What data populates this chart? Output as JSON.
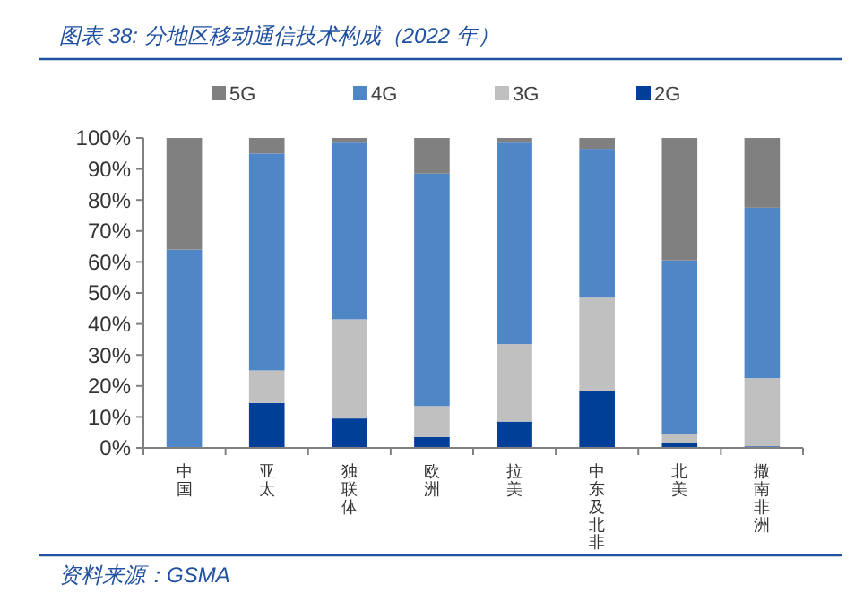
{
  "chart_data": {
    "type": "bar",
    "stacked": true,
    "title": "图表 38:  分地区移动通信技术构成（2022 年）",
    "annotations": [
      "资料来源：GSMA"
    ],
    "categories": [
      "中国",
      "亚太",
      "独联体",
      "欧洲",
      "拉美",
      "中东及北非",
      "北美",
      "撒南非洲"
    ],
    "series": [
      {
        "name": "2G",
        "color": "#003f98",
        "values": [
          0,
          14.5,
          9.5,
          3.5,
          8.5,
          18.5,
          1.5,
          0.5
        ]
      },
      {
        "name": "3G",
        "color": "#c0c0c0",
        "values": [
          0,
          10.5,
          32,
          10,
          25,
          30,
          3,
          22
        ]
      },
      {
        "name": "4G",
        "color": "#4f86c6",
        "values": [
          64,
          70,
          57,
          75,
          65,
          48,
          56,
          55
        ]
      },
      {
        "name": "5G",
        "color": "#808080",
        "values": [
          36,
          5,
          1.5,
          11.5,
          1.5,
          3.5,
          39.5,
          22.5
        ]
      }
    ],
    "ylim": [
      0,
      100
    ],
    "yticks": [
      {
        "value": 0,
        "label": "0%"
      },
      {
        "value": 10,
        "label": "10%"
      },
      {
        "value": 20,
        "label": "20%"
      },
      {
        "value": 30,
        "label": "30%"
      },
      {
        "value": 40,
        "label": "40%"
      },
      {
        "value": 50,
        "label": "50%"
      },
      {
        "value": 60,
        "label": "60%"
      },
      {
        "value": 70,
        "label": "70%"
      },
      {
        "value": 80,
        "label": "80%"
      },
      {
        "value": 90,
        "label": "90%"
      },
      {
        "value": 100,
        "label": "100%"
      }
    ],
    "legend": "top",
    "grid": false
  }
}
